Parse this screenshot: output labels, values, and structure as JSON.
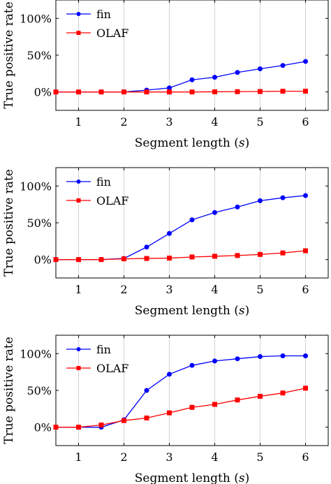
{
  "colors": {
    "fin": "#0000ff",
    "olaf": "#ff0000",
    "grid": "#c8c8c8",
    "axis": "#000000"
  },
  "chart_data": [
    {
      "type": "line",
      "xlabel": "Segment length (s)",
      "xlabel_parts": {
        "text": "Segment length (",
        "var": "s",
        "close": ")"
      },
      "ylabel": "True positive rate",
      "xlim": [
        0.5,
        6.5
      ],
      "ylim": [
        -25,
        125
      ],
      "xticks": [
        1,
        2,
        3,
        4,
        5,
        6
      ],
      "yticks": [
        0,
        50,
        100
      ],
      "ytick_labels": [
        "0%",
        "50%",
        "100%"
      ],
      "grid": "vertical",
      "legend": "top-left",
      "x": [
        0.5,
        1,
        1.5,
        2,
        2.5,
        3,
        3.5,
        4,
        4.5,
        5,
        5.5,
        6
      ],
      "series": [
        {
          "name": "fin",
          "marker": "circle",
          "values": [
            0,
            0,
            0,
            0,
            2.5,
            5.5,
            16.5,
            20,
            26.5,
            31.5,
            36,
            41.5
          ]
        },
        {
          "name": "OLAF",
          "marker": "square",
          "values": [
            0,
            0,
            0,
            0,
            0,
            0,
            0,
            0.2,
            0.4,
            0.6,
            1,
            1
          ]
        }
      ]
    },
    {
      "type": "line",
      "xlabel": "Segment length (s)",
      "xlabel_parts": {
        "text": "Segment length (",
        "var": "s",
        "close": ")"
      },
      "ylabel": "True positive rate",
      "xlim": [
        0.5,
        6.5
      ],
      "ylim": [
        -25,
        125
      ],
      "xticks": [
        1,
        2,
        3,
        4,
        5,
        6
      ],
      "yticks": [
        0,
        50,
        100
      ],
      "ytick_labels": [
        "0%",
        "50%",
        "100%"
      ],
      "grid": "vertical",
      "legend": "top-left",
      "x": [
        0.5,
        1,
        1.5,
        2,
        2.5,
        3,
        3.5,
        4,
        4.5,
        5,
        5.5,
        6
      ],
      "series": [
        {
          "name": "fin",
          "marker": "circle",
          "values": [
            0,
            0,
            0,
            1.5,
            17,
            35.5,
            54,
            64,
            71.5,
            80,
            84,
            87
          ]
        },
        {
          "name": "OLAF",
          "marker": "square",
          "values": [
            0,
            0,
            0,
            1,
            1.5,
            2,
            3.5,
            4.5,
            5.5,
            7,
            9,
            12
          ]
        }
      ]
    },
    {
      "type": "line",
      "xlabel": "Segment length (s)",
      "xlabel_parts": {
        "text": "Segment length (",
        "var": "s",
        "close": ")"
      },
      "ylabel": "True positive rate",
      "xlim": [
        0.5,
        6.5
      ],
      "ylim": [
        -25,
        125
      ],
      "xticks": [
        1,
        2,
        3,
        4,
        5,
        6
      ],
      "yticks": [
        0,
        50,
        100
      ],
      "ytick_labels": [
        "0%",
        "50%",
        "100%"
      ],
      "grid": "vertical",
      "legend": "top-left",
      "x": [
        0.5,
        1,
        1.5,
        2,
        2.5,
        3,
        3.5,
        4,
        4.5,
        5,
        5.5,
        6
      ],
      "series": [
        {
          "name": "fin",
          "marker": "circle",
          "values": [
            0,
            0,
            0,
            10,
            50,
            72,
            84,
            90,
            93,
            96,
            97,
            97
          ]
        },
        {
          "name": "OLAF",
          "marker": "square",
          "values": [
            0,
            0,
            3,
            9,
            12.5,
            19.5,
            27,
            31,
            37,
            42,
            46.5,
            53
          ]
        }
      ]
    }
  ]
}
